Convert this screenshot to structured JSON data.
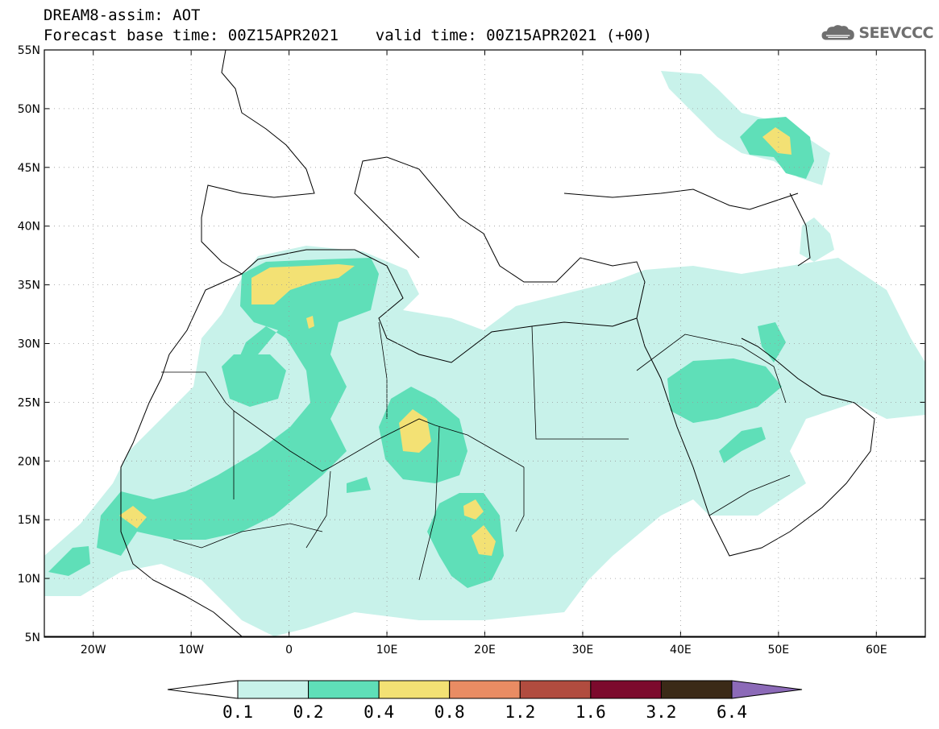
{
  "title": {
    "line1": "DREAM8-assim: AOT",
    "line2": "Forecast base time: 00Z15APR2021    valid time: 00Z15APR2021 (+00)"
  },
  "logo": {
    "text": "SEEVCCC",
    "icon": "cloud-icon"
  },
  "map": {
    "variable": "AOT",
    "lon_range": [
      -25,
      65
    ],
    "lat_range": [
      5,
      55
    ],
    "lat_labels": [
      "55N",
      "50N",
      "45N",
      "40N",
      "35N",
      "30N",
      "25N",
      "20N",
      "15N",
      "10N",
      "5N"
    ],
    "lon_labels": [
      "20W",
      "10W",
      "0",
      "10E",
      "20E",
      "30E",
      "40E",
      "50E",
      "60E"
    ],
    "ocean_color": "#ffffff",
    "border_color": "#000000"
  },
  "colorbar": {
    "levels": [
      "0.1",
      "0.2",
      "0.4",
      "0.8",
      "1.2",
      "1.6",
      "3.2",
      "6.4"
    ],
    "colors": [
      "#c8f2ea",
      "#5fdfb8",
      "#f3e174",
      "#e98c63",
      "#b14c3f",
      "#7c0a2d",
      "#3b2a17",
      "#8c6ab8"
    ]
  }
}
